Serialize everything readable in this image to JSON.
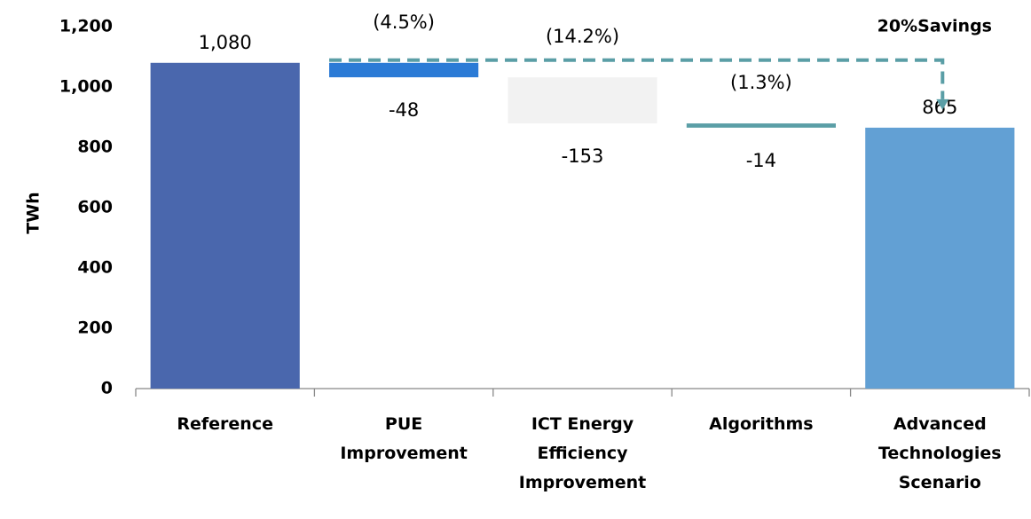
{
  "chart_data": {
    "type": "waterfall",
    "categories": [
      "Reference",
      "PUE Improvement",
      "ICT Energy Efficiency Improvement",
      "Algorithms",
      "Advanced Technologies Scenario"
    ],
    "values": [
      1080,
      -48,
      -153,
      -14,
      865
    ],
    "value_labels": [
      "1,080",
      "-48",
      "-153",
      "-14",
      "865"
    ],
    "measure": [
      "absolute",
      "relative",
      "relative",
      "relative",
      "absolute"
    ],
    "colors": [
      "#4a67ad",
      "#2b7bd6",
      "#f2f2f2",
      "#5a9ea6",
      "#62a0d4"
    ],
    "percent_labels": [
      null,
      "(4.5%)",
      "(14.2%)",
      "(1.3%)",
      null
    ],
    "annotation": "20%Savings",
    "ylabel": "TWh",
    "ylim": [
      0,
      1200
    ],
    "yticks": [
      0,
      200,
      400,
      600,
      800,
      {
        "value": 1000,
        "label": "1,000"
      },
      {
        "value": 1200,
        "label": "1,200"
      }
    ]
  }
}
